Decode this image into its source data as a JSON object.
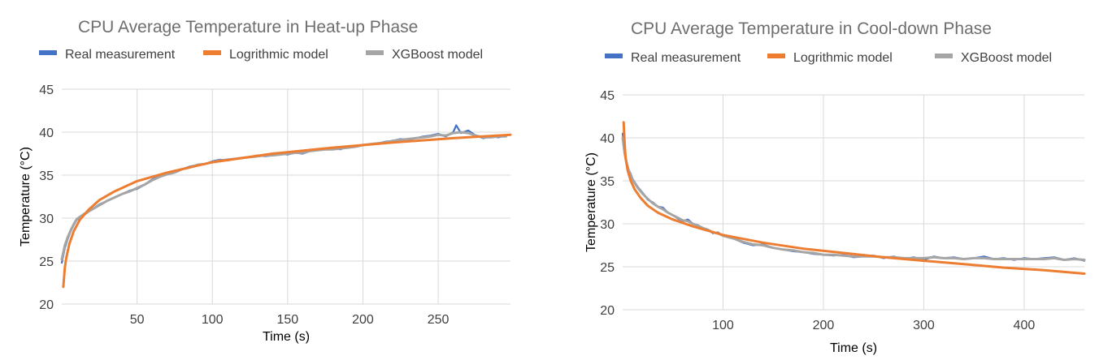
{
  "chart_data": [
    {
      "type": "line",
      "title": "CPU Average Temperature in Heat-up Phase",
      "xlabel": "Time (s)",
      "ylabel": "Temperature (°C)",
      "xlim": [
        0,
        298
      ],
      "ylim": [
        20,
        45
      ],
      "xticks": [
        50,
        100,
        150,
        200,
        250
      ],
      "yticks": [
        20,
        25,
        30,
        35,
        40,
        45
      ],
      "grid": true,
      "legend_position": "top",
      "series": [
        {
          "name": "Real measurement",
          "color": "#4472C4",
          "x": [
            0,
            2,
            4,
            6,
            8,
            10,
            15,
            20,
            25,
            30,
            35,
            40,
            45,
            50,
            55,
            60,
            65,
            70,
            75,
            80,
            85,
            90,
            95,
            100,
            105,
            110,
            115,
            120,
            125,
            130,
            135,
            140,
            145,
            150,
            155,
            160,
            165,
            170,
            175,
            180,
            185,
            190,
            195,
            200,
            205,
            210,
            215,
            220,
            225,
            230,
            235,
            240,
            245,
            250,
            255,
            260,
            262,
            265,
            270,
            275,
            280,
            285,
            290,
            295
          ],
          "y": [
            24.8,
            26.5,
            27.6,
            28.5,
            29.2,
            29.8,
            30.4,
            31.0,
            31.6,
            32.0,
            32.4,
            32.8,
            33.2,
            33.4,
            33.9,
            34.5,
            34.9,
            35.2,
            35.3,
            35.7,
            36.0,
            36.2,
            36.3,
            36.6,
            36.8,
            36.7,
            36.9,
            37.0,
            37.1,
            37.3,
            37.2,
            37.3,
            37.5,
            37.4,
            37.6,
            37.5,
            37.8,
            37.9,
            38.0,
            38.1,
            38.0,
            38.3,
            38.4,
            38.5,
            38.6,
            38.7,
            38.9,
            39.0,
            39.2,
            39.1,
            39.3,
            39.5,
            39.6,
            39.8,
            39.5,
            40.0,
            40.8,
            39.9,
            40.2,
            39.6,
            39.3,
            39.5,
            39.4,
            39.6
          ]
        },
        {
          "name": "Logrithmic model",
          "color": "#ED7D31",
          "x": [
            1,
            2,
            3,
            5,
            8,
            12,
            18,
            25,
            35,
            50,
            70,
            100,
            140,
            180,
            220,
            260,
            298
          ],
          "y": [
            22.0,
            24.2,
            25.4,
            27.0,
            28.5,
            29.8,
            31.0,
            32.1,
            33.1,
            34.3,
            35.3,
            36.5,
            37.5,
            38.2,
            38.8,
            39.3,
            39.7
          ]
        },
        {
          "name": "XGBoost model",
          "color": "#A5A5A5",
          "x": [
            0,
            2,
            4,
            6,
            8,
            10,
            15,
            20,
            25,
            30,
            35,
            40,
            45,
            50,
            55,
            60,
            65,
            70,
            75,
            80,
            85,
            90,
            95,
            100,
            105,
            110,
            115,
            120,
            125,
            130,
            135,
            140,
            145,
            150,
            155,
            160,
            165,
            170,
            175,
            180,
            185,
            190,
            195,
            200,
            205,
            210,
            215,
            220,
            225,
            230,
            235,
            240,
            245,
            250,
            255,
            260,
            265,
            270,
            275,
            280,
            285,
            290,
            295
          ],
          "y": [
            25.2,
            26.8,
            27.8,
            28.6,
            29.3,
            29.9,
            30.5,
            31.0,
            31.5,
            32.0,
            32.4,
            32.8,
            33.1,
            33.5,
            33.9,
            34.4,
            34.8,
            35.1,
            35.3,
            35.7,
            35.9,
            36.2,
            36.3,
            36.5,
            36.7,
            36.8,
            36.9,
            37.0,
            37.1,
            37.2,
            37.3,
            37.3,
            37.4,
            37.5,
            37.6,
            37.6,
            37.8,
            37.9,
            38.0,
            38.0,
            38.1,
            38.2,
            38.3,
            38.5,
            38.6,
            38.7,
            38.8,
            39.0,
            39.1,
            39.2,
            39.3,
            39.4,
            39.5,
            39.7,
            39.6,
            39.9,
            40.0,
            39.9,
            39.6,
            39.4,
            39.4,
            39.5,
            39.5
          ]
        }
      ]
    },
    {
      "type": "line",
      "title": "CPU Average Temperature in Cool-down Phase",
      "xlabel": "Time (s)",
      "ylabel": "Temperature (°C)",
      "xlim": [
        0,
        460
      ],
      "ylim": [
        20,
        45
      ],
      "xticks": [
        100,
        200,
        300,
        400
      ],
      "yticks": [
        20,
        25,
        30,
        35,
        40,
        45
      ],
      "grid": true,
      "legend_position": "top",
      "series": [
        {
          "name": "Real measurement",
          "color": "#4472C4",
          "x": [
            0,
            2,
            4,
            6,
            8,
            10,
            15,
            20,
            25,
            30,
            35,
            40,
            45,
            50,
            55,
            60,
            65,
            70,
            75,
            80,
            85,
            90,
            95,
            100,
            110,
            120,
            130,
            140,
            150,
            160,
            170,
            180,
            190,
            200,
            210,
            220,
            230,
            240,
            250,
            260,
            270,
            280,
            290,
            300,
            310,
            320,
            330,
            340,
            350,
            360,
            370,
            380,
            390,
            400,
            410,
            420,
            430,
            440,
            450,
            460
          ],
          "y": [
            40.5,
            38.5,
            37.2,
            36.3,
            35.8,
            35.2,
            34.3,
            33.6,
            32.8,
            32.5,
            32.0,
            31.9,
            31.3,
            31.0,
            30.6,
            30.3,
            30.5,
            30.0,
            29.8,
            29.5,
            29.3,
            28.9,
            29.0,
            28.6,
            28.3,
            27.8,
            27.5,
            27.6,
            27.2,
            27.0,
            26.8,
            26.7,
            26.5,
            26.4,
            26.3,
            26.4,
            26.1,
            26.2,
            26.3,
            26.0,
            26.2,
            25.9,
            26.1,
            25.8,
            26.2,
            26.0,
            26.1,
            25.9,
            26.0,
            26.2,
            25.9,
            26.0,
            25.8,
            26.0,
            25.9,
            26.0,
            26.1,
            25.8,
            26.0,
            25.7
          ]
        },
        {
          "name": "Logrithmic model",
          "color": "#ED7D31",
          "x": [
            1,
            2,
            3,
            5,
            8,
            12,
            18,
            25,
            35,
            50,
            70,
            100,
            140,
            180,
            220,
            260,
            300,
            340,
            380,
            420,
            460
          ],
          "y": [
            41.8,
            39.2,
            37.6,
            36.2,
            35.0,
            34.0,
            33.0,
            32.1,
            31.3,
            30.5,
            29.7,
            28.7,
            27.8,
            27.1,
            26.6,
            26.1,
            25.7,
            25.3,
            24.9,
            24.6,
            24.2
          ]
        },
        {
          "name": "XGBoost model",
          "color": "#A5A5A5",
          "x": [
            0,
            2,
            4,
            6,
            8,
            10,
            15,
            20,
            25,
            30,
            35,
            40,
            45,
            50,
            55,
            60,
            65,
            70,
            75,
            80,
            85,
            90,
            95,
            100,
            110,
            120,
            130,
            140,
            150,
            160,
            170,
            180,
            190,
            200,
            210,
            220,
            230,
            240,
            250,
            260,
            270,
            280,
            290,
            300,
            310,
            320,
            330,
            340,
            350,
            360,
            370,
            380,
            390,
            400,
            410,
            420,
            430,
            440,
            450,
            460
          ],
          "y": [
            40.0,
            38.2,
            37.0,
            36.2,
            35.6,
            35.1,
            34.2,
            33.5,
            32.9,
            32.4,
            32.0,
            31.7,
            31.3,
            31.0,
            30.7,
            30.4,
            30.3,
            30.0,
            29.8,
            29.5,
            29.3,
            29.0,
            28.9,
            28.6,
            28.3,
            27.9,
            27.6,
            27.5,
            27.2,
            27.0,
            26.9,
            26.7,
            26.6,
            26.4,
            26.4,
            26.3,
            26.2,
            26.2,
            26.2,
            26.1,
            26.1,
            26.0,
            26.0,
            26.0,
            26.1,
            26.0,
            26.0,
            25.9,
            26.0,
            26.0,
            25.9,
            25.9,
            25.9,
            25.9,
            25.9,
            25.9,
            26.0,
            25.8,
            25.9,
            25.8
          ]
        }
      ]
    }
  ]
}
